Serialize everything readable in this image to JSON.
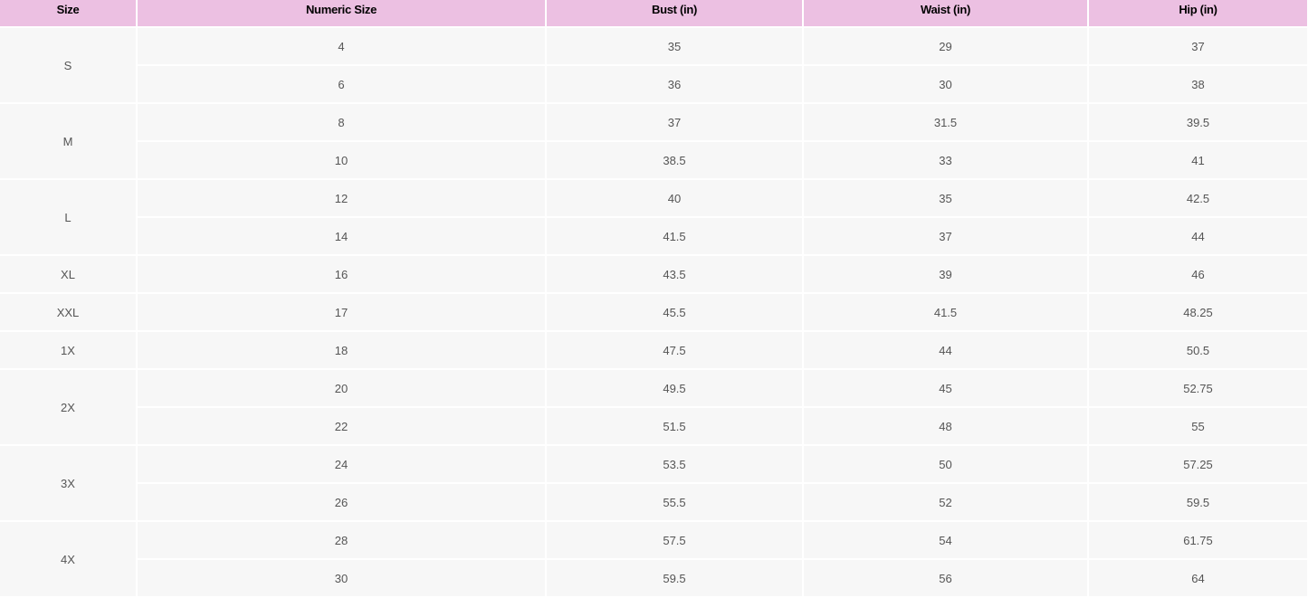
{
  "colors": {
    "header_bg": "#ecc0e2",
    "cell_bg": "#f7f7f7"
  },
  "table": {
    "headers": [
      "Size",
      "Numeric Size",
      "Bust (in)",
      "Waist (in)",
      "Hip (in)"
    ],
    "groups": [
      {
        "size": "S",
        "rows": [
          [
            "4",
            "35",
            "29",
            "37"
          ],
          [
            "6",
            "36",
            "30",
            "38"
          ]
        ]
      },
      {
        "size": "M",
        "rows": [
          [
            "8",
            "37",
            "31.5",
            "39.5"
          ],
          [
            "10",
            "38.5",
            "33",
            "41"
          ]
        ]
      },
      {
        "size": "L",
        "rows": [
          [
            "12",
            "40",
            "35",
            "42.5"
          ],
          [
            "14",
            "41.5",
            "37",
            "44"
          ]
        ]
      },
      {
        "size": "XL",
        "rows": [
          [
            "16",
            "43.5",
            "39",
            "46"
          ]
        ]
      },
      {
        "size": "XXL",
        "rows": [
          [
            "17",
            "45.5",
            "41.5",
            "48.25"
          ]
        ]
      },
      {
        "size": "1X",
        "rows": [
          [
            "18",
            "47.5",
            "44",
            "50.5"
          ]
        ]
      },
      {
        "size": "2X",
        "rows": [
          [
            "20",
            "49.5",
            "45",
            "52.75"
          ],
          [
            "22",
            "51.5",
            "48",
            "55"
          ]
        ]
      },
      {
        "size": "3X",
        "rows": [
          [
            "24",
            "53.5",
            "50",
            "57.25"
          ],
          [
            "26",
            "55.5",
            "52",
            "59.5"
          ]
        ]
      },
      {
        "size": "4X",
        "rows": [
          [
            "28",
            "57.5",
            "54",
            "61.75"
          ],
          [
            "30",
            "59.5",
            "56",
            "64"
          ]
        ]
      }
    ]
  }
}
